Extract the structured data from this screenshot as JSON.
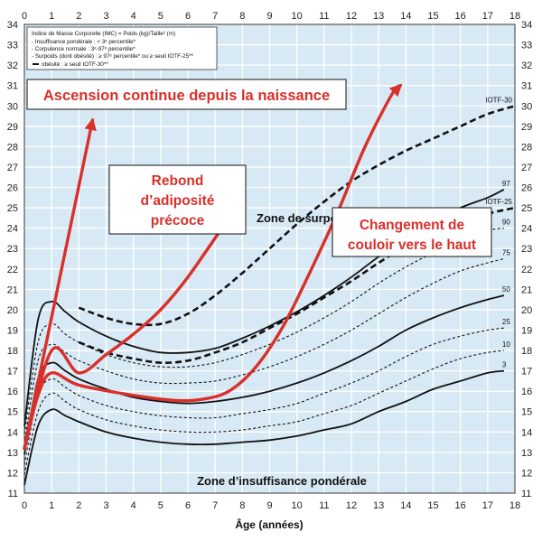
{
  "chart_data": {
    "type": "line",
    "xlabel": "Âge (années)",
    "xlim": [
      0,
      18
    ],
    "ylim": [
      11,
      34
    ],
    "x_ticks": [
      0,
      1,
      2,
      3,
      4,
      5,
      6,
      7,
      8,
      9,
      10,
      11,
      12,
      13,
      14,
      15,
      16,
      17,
      18
    ],
    "y_ticks": [
      11,
      12,
      13,
      14,
      15,
      16,
      17,
      18,
      19,
      20,
      21,
      22,
      23,
      24,
      25,
      26,
      27,
      28,
      29,
      30,
      31,
      32,
      33,
      34
    ],
    "grid": true,
    "background_color": "#d7e9f5",
    "legend": {
      "placement": "top-left",
      "lines": [
        "Indice de Masse Corporelle (IMC) = Poids (kg)/Taille² (m)",
        "- Insuffisance pondérale : < 3ᵉ percentile*",
        "- Corpulence normale : 3ᵉ-97ᵉ percentile*",
        "- Surpoids (dont obésité) : ≥ 97ᵉ percentile* ou ≥ seuil IOTF-25**",
        "obésité : ≥ seuil IOTF-30**"
      ]
    },
    "zone_labels": {
      "top": "Zone de surpoids",
      "bottom": "Zone d’insuffisance pondérale"
    },
    "series": [
      {
        "name": "3",
        "style": "solid",
        "x": [
          0,
          0.5,
          1,
          1.5,
          2,
          3,
          4,
          5,
          6,
          7,
          8,
          9,
          10,
          11,
          12,
          13,
          14,
          15,
          16,
          17,
          17.6
        ],
        "y": [
          11.4,
          14.3,
          15.1,
          14.8,
          14.5,
          14.0,
          13.7,
          13.5,
          13.4,
          13.4,
          13.5,
          13.6,
          13.8,
          14.1,
          14.4,
          15.0,
          15.5,
          16.1,
          16.5,
          16.9,
          17.0
        ]
      },
      {
        "name": "10",
        "style": "dashed",
        "x": [
          0,
          0.5,
          1,
          1.5,
          2,
          3,
          4,
          5,
          6,
          7,
          8,
          9,
          10,
          11,
          12,
          13,
          14,
          15,
          16,
          17,
          17.6
        ],
        "y": [
          11.9,
          15.0,
          15.9,
          15.5,
          15.1,
          14.6,
          14.3,
          14.1,
          14.0,
          14.0,
          14.1,
          14.3,
          14.5,
          14.9,
          15.3,
          15.9,
          16.5,
          17.1,
          17.6,
          17.9,
          18.0
        ]
      },
      {
        "name": "25",
        "style": "dashed",
        "x": [
          0,
          0.5,
          1,
          1.5,
          2,
          3,
          4,
          5,
          6,
          7,
          8,
          9,
          10,
          11,
          12,
          13,
          14,
          15,
          16,
          17,
          17.6
        ],
        "y": [
          12.4,
          15.8,
          16.6,
          16.2,
          15.8,
          15.3,
          15.0,
          14.8,
          14.7,
          14.7,
          14.9,
          15.1,
          15.4,
          15.9,
          16.4,
          17.0,
          17.7,
          18.3,
          18.7,
          19.0,
          19.1
        ]
      },
      {
        "name": "50",
        "style": "solid",
        "x": [
          0,
          0.5,
          1,
          1.5,
          2,
          3,
          4,
          5,
          6,
          7,
          8,
          9,
          10,
          11,
          12,
          13,
          14,
          15,
          16,
          17,
          17.6
        ],
        "y": [
          12.9,
          16.6,
          17.4,
          17.0,
          16.6,
          16.1,
          15.7,
          15.5,
          15.4,
          15.5,
          15.7,
          16.0,
          16.4,
          16.9,
          17.5,
          18.2,
          19.0,
          19.6,
          20.1,
          20.5,
          20.7
        ]
      },
      {
        "name": "75",
        "style": "dashed",
        "x": [
          0,
          0.5,
          1,
          1.5,
          2,
          3,
          4,
          5,
          6,
          7,
          8,
          9,
          10,
          11,
          12,
          13,
          14,
          15,
          16,
          17,
          17.6
        ],
        "y": [
          13.4,
          17.5,
          18.3,
          17.9,
          17.5,
          17.0,
          16.6,
          16.4,
          16.4,
          16.5,
          16.8,
          17.2,
          17.7,
          18.3,
          19.0,
          19.8,
          20.6,
          21.3,
          21.9,
          22.3,
          22.5
        ]
      },
      {
        "name": "90",
        "style": "dashed",
        "x": [
          0,
          0.5,
          1,
          1.5,
          2,
          3,
          4,
          5,
          6,
          7,
          8,
          9,
          10,
          11,
          12,
          13,
          14,
          15,
          16,
          17,
          17.6
        ],
        "y": [
          13.9,
          18.4,
          19.3,
          18.8,
          18.4,
          17.8,
          17.4,
          17.2,
          17.2,
          17.4,
          17.8,
          18.3,
          18.9,
          19.6,
          20.4,
          21.3,
          22.1,
          22.8,
          23.5,
          23.9,
          24.0
        ]
      },
      {
        "name": "97",
        "style": "solid",
        "x": [
          0,
          0.5,
          1,
          1.5,
          2,
          3,
          4,
          5,
          6,
          7,
          8,
          9,
          10,
          11,
          12,
          13,
          14,
          15,
          16,
          17,
          17.6
        ],
        "y": [
          14.3,
          19.5,
          20.4,
          19.9,
          19.4,
          18.7,
          18.2,
          17.9,
          17.9,
          18.1,
          18.6,
          19.2,
          19.9,
          20.7,
          21.6,
          22.6,
          23.5,
          24.3,
          25.0,
          25.5,
          25.9
        ]
      },
      {
        "name": "IOTF-25",
        "style": "thick-dashed",
        "x": [
          2,
          3,
          4,
          5,
          6,
          7,
          8,
          9,
          10,
          11,
          12,
          13,
          14,
          15,
          16,
          17,
          18
        ],
        "y": [
          18.4,
          17.9,
          17.6,
          17.4,
          17.5,
          17.9,
          18.4,
          19.1,
          19.8,
          20.6,
          21.4,
          22.3,
          23.1,
          23.6,
          24.2,
          24.7,
          25.0
        ]
      },
      {
        "name": "IOTF-30",
        "style": "thick-dashed",
        "x": [
          2,
          3,
          4,
          5,
          6,
          7,
          8,
          9,
          10,
          11,
          12,
          13,
          14,
          15,
          16,
          17,
          18
        ],
        "y": [
          20.1,
          19.6,
          19.3,
          19.3,
          19.8,
          20.7,
          21.8,
          23.0,
          24.2,
          25.3,
          26.3,
          27.1,
          27.8,
          28.4,
          29.0,
          29.6,
          30.0
        ]
      }
    ],
    "annotations": [
      {
        "text_lines": [
          "Ascension continue depuis la naissance"
        ],
        "font_size": 16.5,
        "x": [
          0,
          2.5
        ],
        "y": [
          13.2,
          29.3
        ]
      },
      {
        "text_lines": [
          "Rebond",
          "d’adiposité",
          "précoce"
        ],
        "font_size": 15.5,
        "x": [
          0,
          1,
          2,
          3,
          4,
          5,
          6,
          7.5
        ],
        "y": [
          13.2,
          18.0,
          16.9,
          17.8,
          18.8,
          20.0,
          21.6,
          24.5
        ]
      },
      {
        "text_lines": [
          "Changement de",
          "couloir vers le haut"
        ],
        "font_size": 15.5,
        "x": [
          0,
          0.5,
          1,
          2,
          4,
          5.5,
          6.5,
          7.5,
          8.5,
          9.5,
          10.5,
          11.5,
          12.5,
          13.5,
          13.8
        ],
        "y": [
          13.2,
          15.8,
          16.9,
          16.3,
          15.8,
          15.55,
          15.6,
          16.0,
          17.2,
          19.2,
          21.9,
          24.8,
          28.0,
          30.6,
          31.0
        ]
      }
    ]
  }
}
